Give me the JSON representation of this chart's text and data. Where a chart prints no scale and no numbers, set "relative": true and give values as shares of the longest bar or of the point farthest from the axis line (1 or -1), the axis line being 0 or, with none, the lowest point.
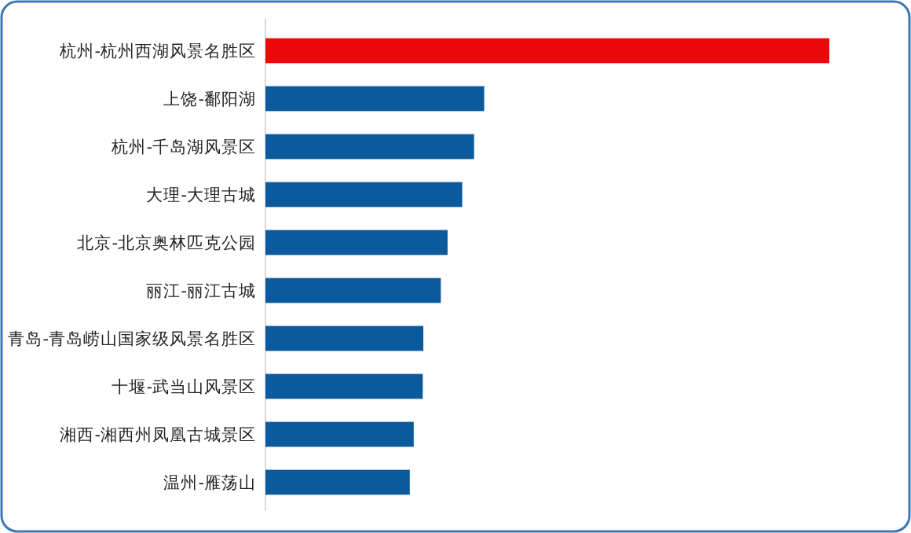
{
  "chart_data": {
    "type": "bar",
    "orientation": "horizontal",
    "relative": true,
    "categories": [
      "杭州-杭州西湖风景名胜区",
      "上饶-鄱阳湖",
      "杭州-千岛湖风景区",
      "大理-大理古城",
      "北京-北京奥林匹克公园",
      "丽江-丽江古城",
      "青岛-青岛崂山国家级风景名胜区",
      "十堰-武当山风景区",
      "湘西-湘西州凤凰古城景区",
      "温州-雁荡山"
    ],
    "values": [
      1,
      0.388,
      0.37,
      0.349,
      0.323,
      0.311,
      0.28,
      0.279,
      0.263,
      0.256
    ],
    "colors": [
      "#ec0808",
      "#0b5a9e",
      "#0b5a9e",
      "#0b5a9e",
      "#0b5a9e",
      "#0b5a9e",
      "#0b5a9e",
      "#0b5a9e",
      "#0b5a9e",
      "#0b5a9e"
    ]
  }
}
